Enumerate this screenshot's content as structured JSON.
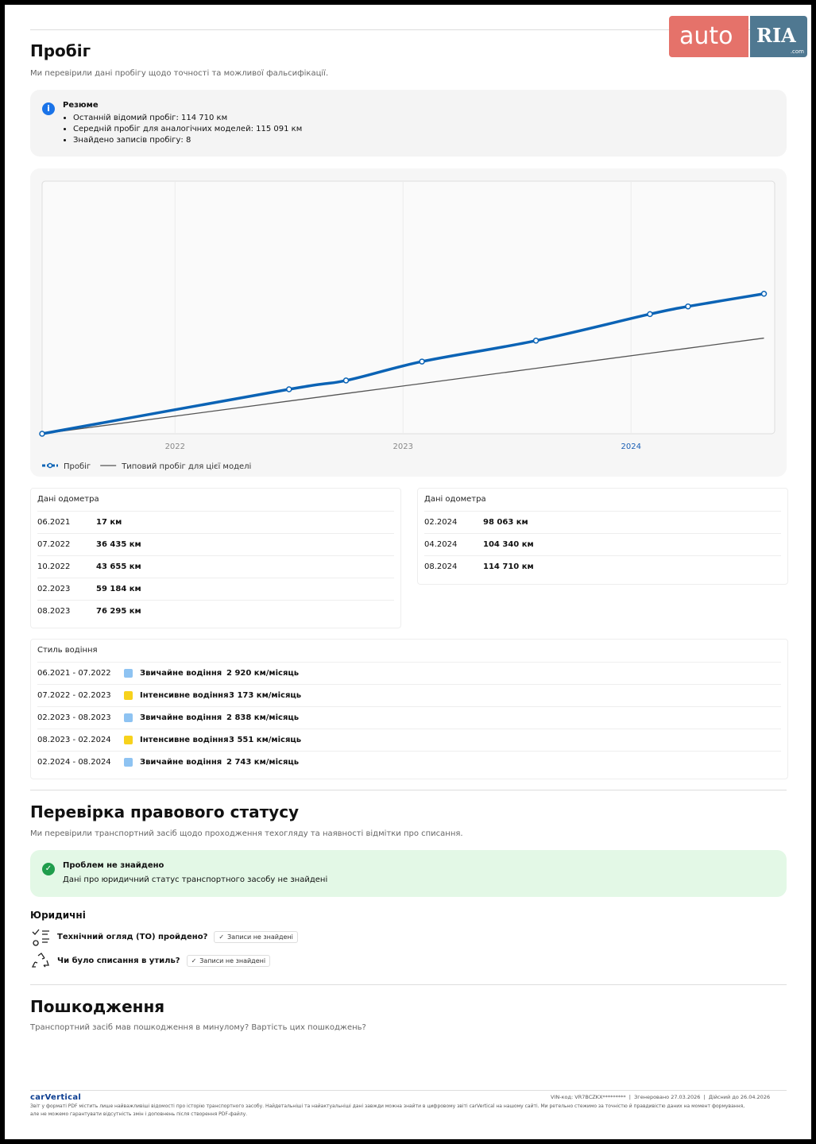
{
  "logo": {
    "auto": "auto",
    "ria": "RIA",
    "com": ".com"
  },
  "mileage": {
    "title": "Пробіг",
    "subtitle": "Ми перевірили дані пробігу щодо точності та можливої фальсифікації.",
    "summary": {
      "title": "Резюме",
      "items": [
        "Останній відомий пробіг: 114 710 км",
        "Середній пробіг для аналогічних моделей: 115 091 км",
        "Знайдено записів пробігу: 8"
      ]
    }
  },
  "chart_data": {
    "type": "line",
    "x": [
      2021.417,
      2022.5,
      2022.75,
      2023.083,
      2023.583,
      2024.083,
      2024.25,
      2024.583
    ],
    "series": [
      {
        "name": "Пробіг",
        "color": "#0b63b5",
        "values": [
          17,
          36435,
          43655,
          59184,
          76295,
          98063,
          104340,
          114710
        ]
      },
      {
        "name": "Типовий пробіг для цієї моделі",
        "color": "#555555",
        "values": [
          0,
          26800,
          33000,
          41200,
          53600,
          66000,
          70100,
          78400
        ]
      }
    ],
    "xlim": [
      2021.417,
      2024.63
    ],
    "ylim": [
      0,
      207000
    ],
    "xticks": [
      2022,
      2023,
      2024
    ],
    "grid": true,
    "legend": "bottom-left"
  },
  "odometer": [
    {
      "title": "Дані одометра",
      "rows": [
        [
          "06.2021",
          "17 км"
        ],
        [
          "07.2022",
          "36 435 км"
        ],
        [
          "10.2022",
          "43 655 км"
        ],
        [
          "02.2023",
          "59 184 км"
        ],
        [
          "08.2023",
          "76 295 км"
        ]
      ]
    },
    {
      "title": "Дані одометра",
      "rows": [
        [
          "02.2024",
          "98 063 км"
        ],
        [
          "04.2024",
          "104 340 км"
        ],
        [
          "08.2024",
          "114 710 км"
        ]
      ]
    }
  ],
  "driving_style": {
    "title": "Стиль водіння",
    "rows": [
      {
        "period": "06.2021 - 07.2022",
        "style": "Звичайне водіння",
        "rate": "2 920 км/місяць",
        "color": "#8ec3f2"
      },
      {
        "period": "07.2022 - 02.2023",
        "style": "Інтенсивне водіння",
        "rate": "3 173 км/місяць",
        "color": "#f7d21c"
      },
      {
        "period": "02.2023 - 08.2023",
        "style": "Звичайне водіння",
        "rate": "2 838 км/місяць",
        "color": "#8ec3f2"
      },
      {
        "period": "08.2023 - 02.2024",
        "style": "Інтенсивне водіння",
        "rate": "3 551 км/місяць",
        "color": "#f7d21c"
      },
      {
        "period": "02.2024 - 08.2024",
        "style": "Звичайне водіння",
        "rate": "2 743 км/місяць",
        "color": "#8ec3f2"
      }
    ]
  },
  "legal": {
    "title": "Перевірка правового статусу",
    "subtitle": "Ми перевірили транспортний засіб щодо проходження техогляду та наявності відмітки про списання.",
    "status": {
      "title": "Проблем не знайдено",
      "text": "Дані про юридичний статус транспортного засобу не знайдені"
    },
    "section": "Юридичні",
    "items": [
      {
        "question": "Технічний огляд (ТО) пройдено?",
        "badge": "Записи не знайдені"
      },
      {
        "question": "Чи було списання в утиль?",
        "badge": "Записи не знайдені"
      }
    ]
  },
  "damage": {
    "title": "Пошкодження",
    "subtitle": "Транспортний засіб мав пошкодження в минулому? Вартість цих пошкоджень?"
  },
  "footer": {
    "brand": "carVertical",
    "vin_label": "VIN-код:",
    "vin": "VR7BCZKX*********",
    "generated_label": "Згенеровано",
    "generated": "27.03.2026",
    "valid_label": "Дійсний до",
    "valid": "26.04.2026",
    "disclaimer": [
      "Звіт у форматі PDF містить лише найважливіші відомості про історію транспортного засобу. Найдетальніші та найактуальніші дані завжди можна знайти в цифровому звіті carVertical на нашому сайті. Ми ретельно стежимо за точністю й правдивістю даних на момент формування,",
      "але не можемо гарантувати відсутність змін і доповнень після створення PDF-файлу."
    ]
  }
}
